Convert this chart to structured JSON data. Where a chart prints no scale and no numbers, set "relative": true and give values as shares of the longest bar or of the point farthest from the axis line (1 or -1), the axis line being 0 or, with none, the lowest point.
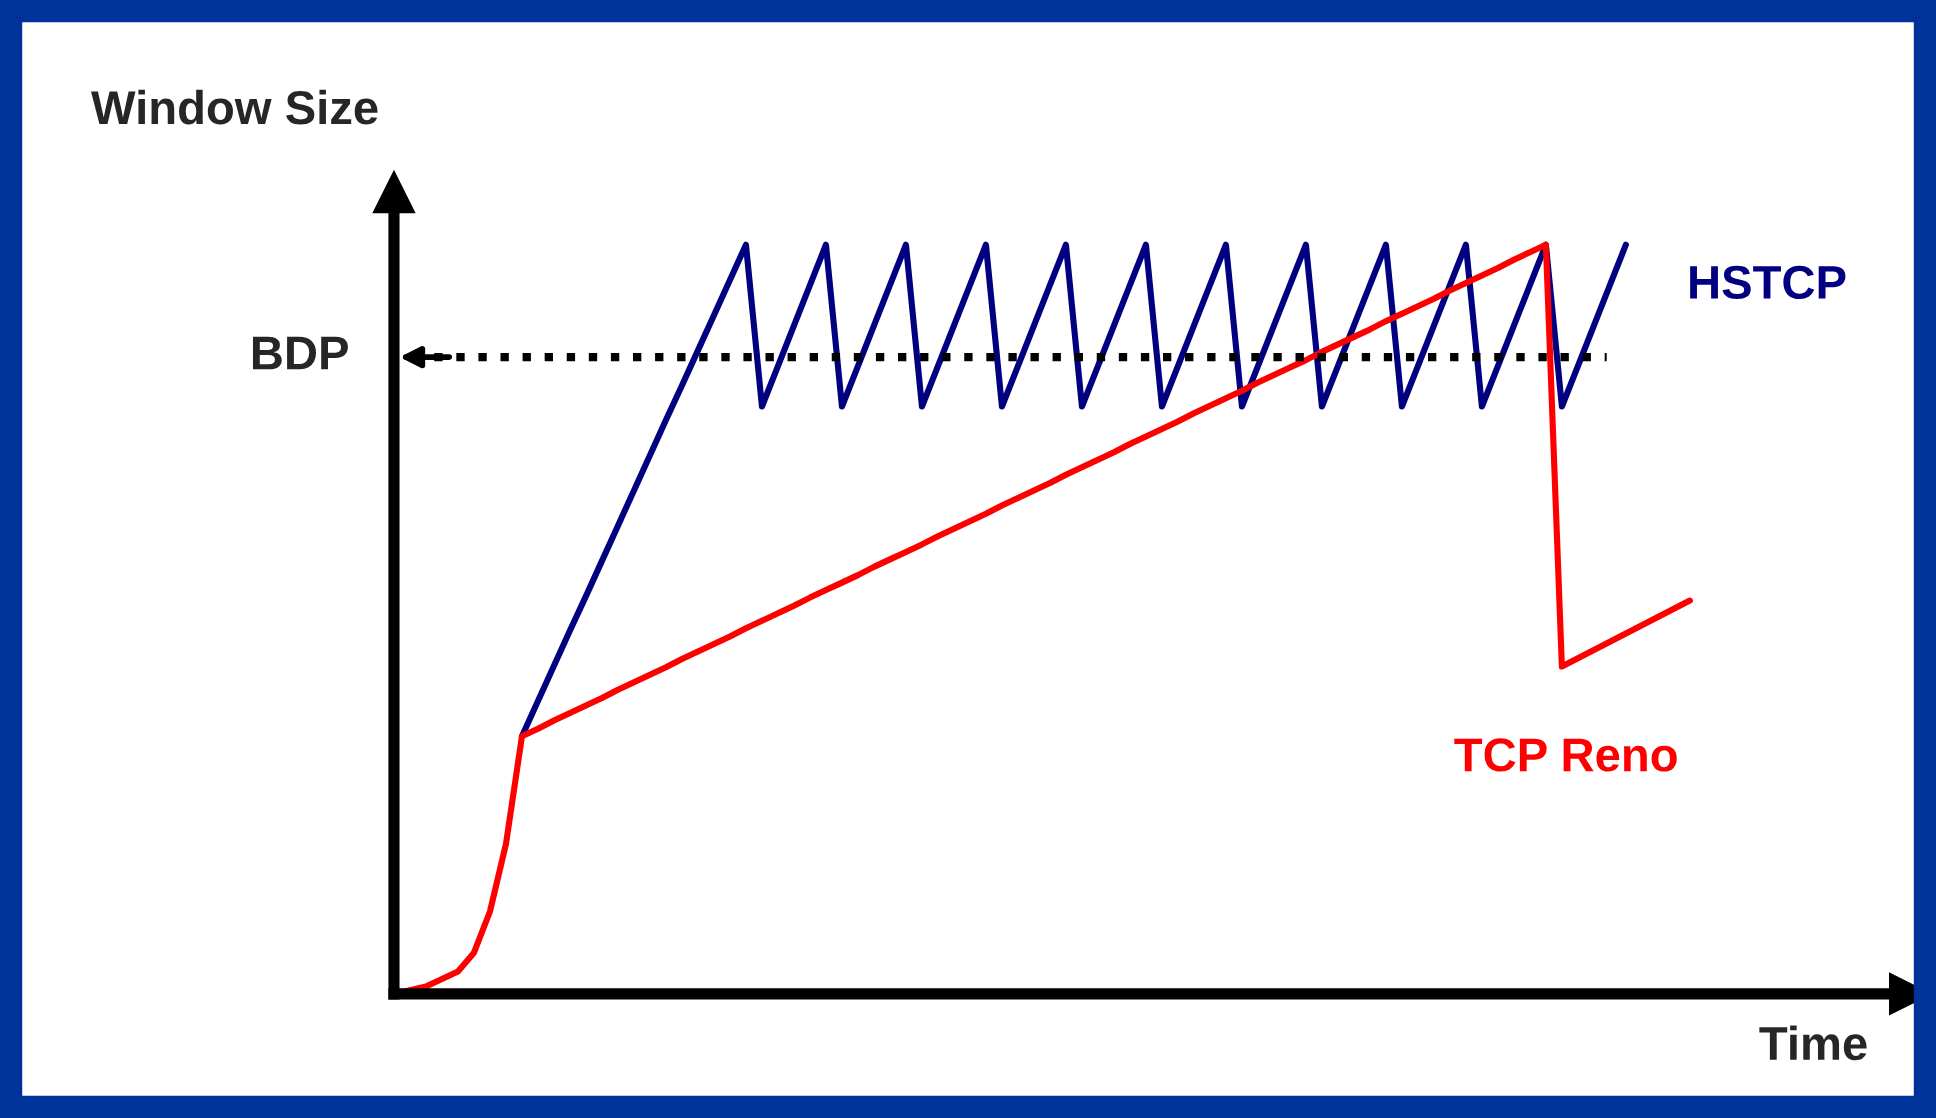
{
  "chart_data": {
    "type": "line",
    "relative": true,
    "xlabel": "Time",
    "ylabel": "Window Size",
    "tick_labels": false,
    "marker": "none",
    "line_style": "solid",
    "categories": [
      null,
      null,
      null,
      null,
      null,
      null,
      null,
      null,
      null,
      null,
      null,
      null,
      null,
      null,
      null,
      null,
      null,
      null,
      null,
      null,
      null,
      null,
      null,
      null,
      null,
      null,
      null,
      null,
      null,
      null,
      null,
      null,
      null,
      null,
      null,
      null,
      null,
      null,
      null,
      null,
      null,
      null,
      null,
      null,
      null,
      null,
      null,
      null,
      null,
      null,
      null,
      null,
      null,
      null,
      null,
      null,
      null,
      null,
      null,
      null,
      null,
      null,
      null,
      null,
      null,
      null,
      null,
      null,
      null,
      null,
      null,
      null,
      null,
      null,
      null,
      null,
      null,
      null,
      null,
      null,
      null,
      null,
      null,
      null,
      null,
      null,
      null,
      null,
      null,
      null,
      null,
      null,
      null,
      null,
      null
    ],
    "series": [
      {
        "name": "HSTCP",
        "color": "#000080",
        "values": [
          null,
          null,
          null,
          null,
          null,
          null,
          null,
          null,
          0.344,
          0.391,
          0.438,
          0.485,
          0.531,
          0.578,
          0.625,
          0.672,
          0.719,
          0.766,
          0.812,
          0.859,
          0.906,
          0.953,
          1.0,
          0.784,
          0.838,
          0.892,
          0.946,
          1.0,
          0.784,
          0.838,
          0.892,
          0.946,
          1.0,
          0.784,
          0.838,
          0.892,
          0.946,
          1.0,
          0.784,
          0.838,
          0.892,
          0.946,
          1.0,
          0.784,
          0.838,
          0.892,
          0.946,
          1.0,
          0.784,
          0.838,
          0.892,
          0.946,
          1.0,
          0.784,
          0.838,
          0.892,
          0.946,
          1.0,
          0.784,
          0.838,
          0.892,
          0.946,
          1.0,
          0.784,
          0.838,
          0.892,
          0.946,
          1.0,
          0.784,
          0.838,
          0.892,
          0.946,
          1.0,
          0.784,
          0.838,
          0.892,
          0.946,
          1.0,
          null,
          null,
          null,
          null,
          null,
          null,
          null,
          null,
          null,
          null,
          null,
          null,
          null,
          null,
          null,
          null,
          null
        ]
      },
      {
        "name": "TCP Reno",
        "color": "#ff0000",
        "values": [
          0,
          0.005,
          0.01,
          0.02,
          0.03,
          0.055,
          0.11,
          0.2,
          0.344,
          0.354,
          0.365,
          0.375,
          0.385,
          0.395,
          0.406,
          0.416,
          0.426,
          0.436,
          0.447,
          0.457,
          0.467,
          0.477,
          0.488,
          0.498,
          0.508,
          0.518,
          0.529,
          0.539,
          0.549,
          0.559,
          0.57,
          0.58,
          0.59,
          0.6,
          0.611,
          0.621,
          0.631,
          0.641,
          0.652,
          0.662,
          0.672,
          0.682,
          0.693,
          0.703,
          0.713,
          0.723,
          0.734,
          0.744,
          0.754,
          0.764,
          0.775,
          0.785,
          0.795,
          0.805,
          0.816,
          0.826,
          0.836,
          0.846,
          0.857,
          0.867,
          0.877,
          0.887,
          0.898,
          0.908,
          0.918,
          0.928,
          0.939,
          0.949,
          0.959,
          0.969,
          0.98,
          0.99,
          1.0,
          0.437,
          0.448,
          0.459,
          0.47,
          0.481,
          0.492,
          0.503,
          0.514,
          0.525,
          null,
          null,
          null,
          null,
          null,
          null,
          null,
          null,
          null,
          null,
          null,
          null,
          null
        ]
      }
    ],
    "ref_lines": [
      {
        "axis": "y",
        "value": 0.85,
        "label": "BDP",
        "color": "#000000",
        "line_style": "dotted"
      }
    ]
  }
}
